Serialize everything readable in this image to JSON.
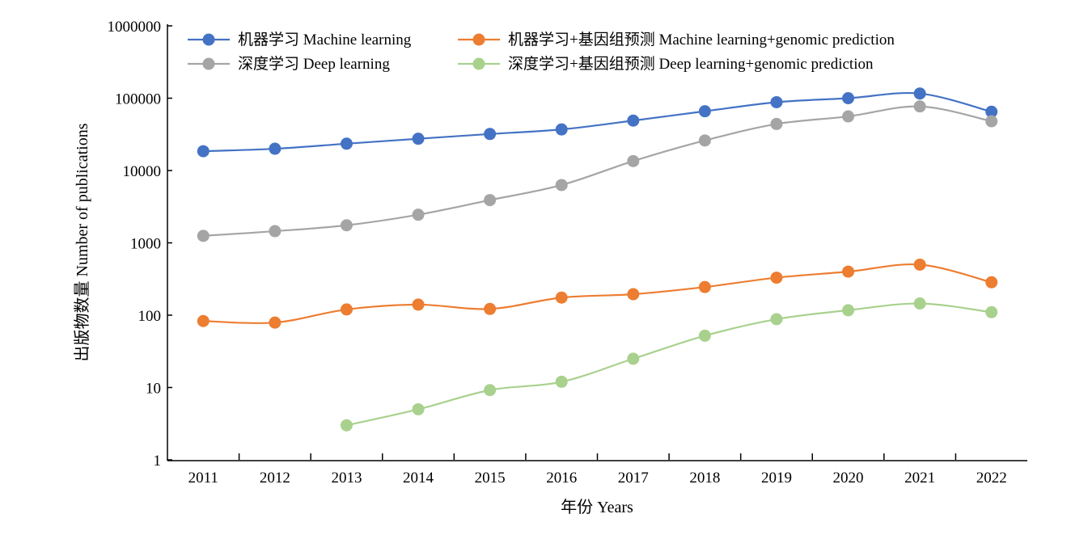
{
  "chart_data": {
    "type": "line",
    "title": "",
    "xlabel": "年份 Years",
    "ylabel": "出版物数量 Number of publications",
    "yscale": "log",
    "ylim": [
      1,
      1000000
    ],
    "y_ticks": [
      "1",
      "10",
      "100",
      "1000",
      "10000",
      "100000",
      "1000000"
    ],
    "categories": [
      "2011",
      "2012",
      "2013",
      "2014",
      "2015",
      "2016",
      "2017",
      "2018",
      "2019",
      "2020",
      "2021",
      "2022"
    ],
    "grid": false,
    "legend_position": "top",
    "series": [
      {
        "name": "机器学习 Machine learning",
        "color": "#4472C4",
        "values": [
          18500,
          20000,
          23500,
          27500,
          32000,
          37000,
          49000,
          66000,
          88000,
          100000,
          116000,
          65000
        ]
      },
      {
        "name": "机器学习+基因组预测 Machine learning+genomic prediction",
        "color": "#ED7D31",
        "values": [
          83,
          79,
          120,
          140,
          122,
          175,
          195,
          245,
          330,
          400,
          500,
          285
        ]
      },
      {
        "name": "深度学习 Deep learning",
        "color": "#A5A5A5",
        "values": [
          1250,
          1450,
          1750,
          2450,
          3900,
          6300,
          13500,
          26000,
          44000,
          56000,
          77000,
          48000
        ]
      },
      {
        "name": "深度学习+基因组预测 Deep learning+genomic prediction",
        "color": "#A9D18E",
        "values": [
          null,
          null,
          3,
          5,
          9.2,
          12,
          25,
          52,
          88,
          117,
          145,
          110
        ]
      }
    ]
  }
}
